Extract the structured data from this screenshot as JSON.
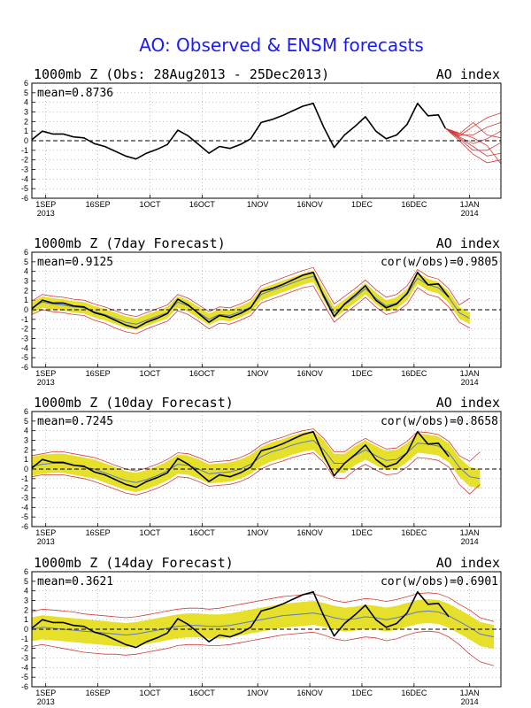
{
  "figure": {
    "title": "AO: Observed & ENSM forecasts"
  },
  "colors": {
    "obs": "#000000",
    "ens_mean": "#5a78c8",
    "ens_band": "#e6e02a",
    "ens_members": "#d23c3c",
    "title": "#1a1aff",
    "zero_line": "#000000"
  },
  "x_axis": {
    "start_date": "2013-08-28",
    "end_date": "2014-01-10",
    "ticks": [
      {
        "date": "2013-09-01",
        "label": "1SEP",
        "sublabel": "2013"
      },
      {
        "date": "2013-09-16",
        "label": "16SEP"
      },
      {
        "date": "2013-10-01",
        "label": "1OCT"
      },
      {
        "date": "2013-10-16",
        "label": "16OCT"
      },
      {
        "date": "2013-11-01",
        "label": "1NOV"
      },
      {
        "date": "2013-11-16",
        "label": "16NOV"
      },
      {
        "date": "2013-12-01",
        "label": "1DEC"
      },
      {
        "date": "2013-12-16",
        "label": "16DEC"
      },
      {
        "date": "2014-01-01",
        "label": "1JAN",
        "sublabel": "2014"
      }
    ]
  },
  "y_axis": {
    "ylim": [
      -6,
      6
    ],
    "ticks": [
      "6",
      "5",
      "4",
      "3",
      "2",
      "1",
      "0",
      "-1",
      "-2",
      "-3",
      "-4",
      "-5",
      "-6"
    ],
    "grid": "dotted"
  },
  "chart_data": [
    {
      "type": "line",
      "title": "1000mb Z (Obs: 28Aug2013 - 25Dec2013)",
      "right_label": "AO index",
      "stat_text": "mean=0.8736",
      "cor_text": "",
      "x": [
        "2013-08-28",
        "2013-08-31",
        "2013-09-03",
        "2013-09-06",
        "2013-09-09",
        "2013-09-12",
        "2013-09-15",
        "2013-09-18",
        "2013-09-21",
        "2013-09-24",
        "2013-09-27",
        "2013-09-30",
        "2013-10-03",
        "2013-10-06",
        "2013-10-09",
        "2013-10-12",
        "2013-10-15",
        "2013-10-18",
        "2013-10-21",
        "2013-10-24",
        "2013-10-27",
        "2013-10-30",
        "2013-11-02",
        "2013-11-05",
        "2013-11-08",
        "2013-11-11",
        "2013-11-14",
        "2013-11-17",
        "2013-11-20",
        "2013-11-23",
        "2013-11-26",
        "2013-11-29",
        "2013-12-02",
        "2013-12-05",
        "2013-12-08",
        "2013-12-11",
        "2013-12-14",
        "2013-12-17",
        "2013-12-20",
        "2013-12-23",
        "2013-12-25"
      ],
      "obs": [
        0.1,
        1.0,
        0.7,
        0.7,
        0.4,
        0.3,
        -0.3,
        -0.6,
        -1.1,
        -1.6,
        -1.9,
        -1.3,
        -0.9,
        -0.4,
        1.1,
        0.5,
        -0.4,
        -1.3,
        -0.6,
        -0.8,
        -0.4,
        0.2,
        1.9,
        2.2,
        2.6,
        3.1,
        3.6,
        3.9,
        1.4,
        -0.7,
        0.6,
        1.5,
        2.5,
        1.0,
        0.2,
        0.6,
        1.7,
        3.9,
        2.6,
        2.7,
        1.3
      ],
      "members": [
        {
          "x": [
            "2013-12-25",
            "2013-12-29",
            "2014-01-02",
            "2014-01-06",
            "2014-01-10"
          ],
          "y": [
            1.3,
            0.5,
            1.5,
            2.4,
            2.9
          ]
        },
        {
          "x": [
            "2013-12-25",
            "2013-12-29",
            "2014-01-02",
            "2014-01-06",
            "2014-01-10"
          ],
          "y": [
            1.3,
            0.6,
            0.6,
            1.4,
            1.9
          ]
        },
        {
          "x": [
            "2013-12-25",
            "2013-12-29",
            "2014-01-02",
            "2014-01-06",
            "2014-01-10"
          ],
          "y": [
            1.3,
            0.4,
            -0.3,
            0.2,
            1.0
          ]
        },
        {
          "x": [
            "2013-12-25",
            "2013-12-29",
            "2014-01-02",
            "2014-01-06",
            "2014-01-10"
          ],
          "y": [
            1.3,
            0.2,
            -1.0,
            -1.0,
            -0.2
          ]
        },
        {
          "x": [
            "2013-12-25",
            "2013-12-29",
            "2014-01-02",
            "2014-01-06",
            "2014-01-10"
          ],
          "y": [
            1.3,
            0.3,
            -0.6,
            -1.6,
            -1.3
          ]
        },
        {
          "x": [
            "2013-12-25",
            "2013-12-29",
            "2014-01-02",
            "2014-01-06",
            "2014-01-10"
          ],
          "y": [
            1.3,
            0.8,
            0.3,
            -0.5,
            -2.4
          ]
        },
        {
          "x": [
            "2013-12-25",
            "2013-12-29",
            "2014-01-02",
            "2014-01-06",
            "2014-01-10"
          ],
          "y": [
            1.3,
            0.0,
            -1.4,
            -2.3,
            -2.0
          ]
        },
        {
          "x": [
            "2013-12-25",
            "2013-12-29",
            "2014-01-02",
            "2014-01-06",
            "2014-01-10"
          ],
          "y": [
            1.3,
            0.7,
            1.9,
            0.6,
            0.3
          ]
        }
      ]
    },
    {
      "type": "line",
      "title": "1000mb Z (7day Forecast)",
      "right_label": "AO index",
      "stat_text": "mean=0.9125",
      "cor_text": "cor(w/obs)=0.9805",
      "x": [
        "2013-08-28",
        "2013-08-31",
        "2013-09-03",
        "2013-09-06",
        "2013-09-09",
        "2013-09-12",
        "2013-09-15",
        "2013-09-18",
        "2013-09-21",
        "2013-09-24",
        "2013-09-27",
        "2013-09-30",
        "2013-10-03",
        "2013-10-06",
        "2013-10-09",
        "2013-10-12",
        "2013-10-15",
        "2013-10-18",
        "2013-10-21",
        "2013-10-24",
        "2013-10-27",
        "2013-10-30",
        "2013-11-02",
        "2013-11-05",
        "2013-11-08",
        "2013-11-11",
        "2013-11-14",
        "2013-11-17",
        "2013-11-20",
        "2013-11-23",
        "2013-11-26",
        "2013-11-29",
        "2013-12-02",
        "2013-12-05",
        "2013-12-08",
        "2013-12-11",
        "2013-12-14",
        "2013-12-17",
        "2013-12-20",
        "2013-12-23",
        "2013-12-26",
        "2013-12-29",
        "2014-01-01"
      ],
      "obs": [
        0.1,
        1.0,
        0.7,
        0.7,
        0.4,
        0.3,
        -0.3,
        -0.6,
        -1.1,
        -1.6,
        -1.9,
        -1.3,
        -0.9,
        -0.4,
        1.1,
        0.5,
        -0.4,
        -1.3,
        -0.6,
        -0.8,
        -0.4,
        0.2,
        1.9,
        2.2,
        2.6,
        3.1,
        3.6,
        3.9,
        1.4,
        -0.7,
        0.6,
        1.5,
        2.5,
        1.0,
        0.2,
        0.6,
        1.7,
        3.9,
        2.6,
        2.7,
        1.3
      ],
      "mean": [
        0.2,
        0.8,
        0.6,
        0.5,
        0.3,
        0.2,
        -0.2,
        -0.5,
        -0.9,
        -1.3,
        -1.5,
        -1.1,
        -0.7,
        -0.3,
        0.8,
        0.4,
        -0.3,
        -1.0,
        -0.5,
        -0.6,
        -0.2,
        0.3,
        1.6,
        2.0,
        2.4,
        2.8,
        3.2,
        3.5,
        1.6,
        -0.3,
        0.5,
        1.3,
        2.2,
        1.2,
        0.4,
        0.7,
        1.6,
        3.3,
        2.6,
        2.3,
        1.3,
        -0.3,
        -0.9
      ],
      "band_halfwidth": 0.6,
      "members_lower": [
        -0.5,
        0.0,
        -0.2,
        -0.3,
        -0.5,
        -0.6,
        -1.1,
        -1.4,
        -1.9,
        -2.3,
        -2.5,
        -2.0,
        -1.6,
        -1.2,
        -0.1,
        -0.5,
        -1.2,
        -2.0,
        -1.4,
        -1.5,
        -1.1,
        -0.6,
        0.7,
        1.1,
        1.5,
        1.9,
        2.3,
        2.5,
        0.6,
        -1.3,
        -0.4,
        0.4,
        1.3,
        0.3,
        -0.5,
        -0.2,
        0.6,
        2.3,
        1.6,
        1.3,
        0.3,
        -1.3,
        -1.9
      ],
      "members_upper": [
        0.9,
        1.6,
        1.4,
        1.3,
        1.1,
        1.0,
        0.6,
        0.3,
        -0.1,
        -0.5,
        -0.7,
        -0.3,
        0.1,
        0.5,
        1.6,
        1.2,
        0.5,
        -0.2,
        0.3,
        0.2,
        0.6,
        1.1,
        2.5,
        2.9,
        3.3,
        3.7,
        4.1,
        4.4,
        2.5,
        0.6,
        1.4,
        2.2,
        3.1,
        2.1,
        1.3,
        1.6,
        2.5,
        4.2,
        3.5,
        3.2,
        2.2,
        0.5,
        1.2
      ]
    },
    {
      "type": "line",
      "title": "1000mb Z (10day Forecast)",
      "right_label": "AO index",
      "stat_text": "mean=0.7245",
      "cor_text": "cor(w/obs)=0.8658",
      "x": [
        "2013-08-28",
        "2013-08-31",
        "2013-09-03",
        "2013-09-06",
        "2013-09-09",
        "2013-09-12",
        "2013-09-15",
        "2013-09-18",
        "2013-09-21",
        "2013-09-24",
        "2013-09-27",
        "2013-09-30",
        "2013-10-03",
        "2013-10-06",
        "2013-10-09",
        "2013-10-12",
        "2013-10-15",
        "2013-10-18",
        "2013-10-21",
        "2013-10-24",
        "2013-10-27",
        "2013-10-30",
        "2013-11-02",
        "2013-11-05",
        "2013-11-08",
        "2013-11-11",
        "2013-11-14",
        "2013-11-17",
        "2013-11-20",
        "2013-11-23",
        "2013-11-26",
        "2013-11-29",
        "2013-12-02",
        "2013-12-05",
        "2013-12-08",
        "2013-12-11",
        "2013-12-14",
        "2013-12-17",
        "2013-12-20",
        "2013-12-23",
        "2013-12-26",
        "2013-12-29",
        "2014-01-01",
        "2014-01-04"
      ],
      "obs": [
        0.1,
        1.0,
        0.7,
        0.7,
        0.4,
        0.3,
        -0.3,
        -0.6,
        -1.1,
        -1.6,
        -1.9,
        -1.3,
        -0.9,
        -0.4,
        1.1,
        0.5,
        -0.4,
        -1.3,
        -0.6,
        -0.8,
        -0.4,
        0.2,
        1.9,
        2.2,
        2.6,
        3.1,
        3.6,
        3.9,
        1.4,
        -0.7,
        0.6,
        1.5,
        2.5,
        1.0,
        0.2,
        0.6,
        1.7,
        3.9,
        2.6,
        2.7,
        1.3
      ],
      "mean": [
        0.3,
        0.5,
        0.6,
        0.6,
        0.4,
        0.2,
        0.0,
        -0.4,
        -0.8,
        -1.2,
        -1.4,
        -1.1,
        -0.7,
        -0.2,
        0.5,
        0.4,
        0.0,
        -0.5,
        -0.4,
        -0.3,
        0.0,
        0.5,
        1.3,
        1.8,
        2.1,
        2.5,
        2.8,
        3.0,
        2.0,
        0.6,
        0.6,
        1.4,
        2.0,
        1.4,
        0.9,
        1.0,
        1.7,
        2.7,
        2.6,
        2.4,
        1.7,
        0.2,
        -0.8,
        -1.0
      ],
      "band_halfwidth": 1.0,
      "members_lower": [
        -0.8,
        -0.6,
        -0.6,
        -0.6,
        -0.8,
        -1.0,
        -1.3,
        -1.7,
        -2.1,
        -2.5,
        -2.7,
        -2.4,
        -2.0,
        -1.5,
        -0.8,
        -0.9,
        -1.3,
        -1.8,
        -1.7,
        -1.6,
        -1.3,
        -0.8,
        0.0,
        0.5,
        0.8,
        1.2,
        1.5,
        1.7,
        0.7,
        -0.9,
        -1.0,
        -0.1,
        0.5,
        -0.1,
        -0.6,
        -0.5,
        0.2,
        1.2,
        1.1,
        0.9,
        0.2,
        -1.6,
        -2.6,
        -1.6
      ],
      "members_upper": [
        1.4,
        1.6,
        1.8,
        1.8,
        1.6,
        1.4,
        1.2,
        0.8,
        0.4,
        0.0,
        -0.2,
        0.1,
        0.5,
        1.0,
        1.7,
        1.6,
        1.2,
        0.7,
        0.8,
        0.9,
        1.2,
        1.7,
        2.5,
        3.0,
        3.3,
        3.7,
        4.0,
        4.2,
        3.2,
        1.8,
        1.8,
        2.6,
        3.2,
        2.6,
        2.1,
        2.2,
        2.9,
        3.9,
        3.8,
        3.6,
        2.9,
        1.4,
        0.8,
        1.8
      ]
    },
    {
      "type": "line",
      "title": "1000mb Z (14day Forecast)",
      "right_label": "AO index",
      "stat_text": "mean=0.3621",
      "cor_text": "cor(w/obs)=0.6901",
      "x": [
        "2013-08-28",
        "2013-08-31",
        "2013-09-03",
        "2013-09-06",
        "2013-09-09",
        "2013-09-12",
        "2013-09-15",
        "2013-09-18",
        "2013-09-21",
        "2013-09-24",
        "2013-09-27",
        "2013-09-30",
        "2013-10-03",
        "2013-10-06",
        "2013-10-09",
        "2013-10-12",
        "2013-10-15",
        "2013-10-18",
        "2013-10-21",
        "2013-10-24",
        "2013-10-27",
        "2013-10-30",
        "2013-11-02",
        "2013-11-05",
        "2013-11-08",
        "2013-11-11",
        "2013-11-14",
        "2013-11-17",
        "2013-11-20",
        "2013-11-23",
        "2013-11-26",
        "2013-11-29",
        "2013-12-02",
        "2013-12-05",
        "2013-12-08",
        "2013-12-11",
        "2013-12-14",
        "2013-12-17",
        "2013-12-20",
        "2013-12-23",
        "2013-12-26",
        "2013-12-29",
        "2014-01-01",
        "2014-01-04",
        "2014-01-08"
      ],
      "obs": [
        0.1,
        1.0,
        0.7,
        0.7,
        0.4,
        0.3,
        -0.3,
        -0.6,
        -1.1,
        -1.6,
        -1.9,
        -1.3,
        -0.9,
        -0.4,
        1.1,
        0.5,
        -0.4,
        -1.3,
        -0.6,
        -0.8,
        -0.4,
        0.2,
        1.9,
        2.2,
        2.6,
        3.1,
        3.6,
        3.9,
        1.4,
        -0.7,
        0.6,
        1.5,
        2.5,
        1.0,
        0.2,
        0.6,
        1.7,
        3.9,
        2.6,
        2.7,
        1.3
      ],
      "mean": [
        0.0,
        0.2,
        0.1,
        0.0,
        -0.1,
        -0.2,
        -0.3,
        -0.4,
        -0.5,
        -0.6,
        -0.5,
        -0.3,
        -0.1,
        0.1,
        0.3,
        0.4,
        0.4,
        0.3,
        0.3,
        0.4,
        0.6,
        0.8,
        1.0,
        1.2,
        1.4,
        1.5,
        1.6,
        1.7,
        1.5,
        1.2,
        1.0,
        1.1,
        1.3,
        1.2,
        1.0,
        1.2,
        1.5,
        1.8,
        1.9,
        1.8,
        1.4,
        0.8,
        0.2,
        -0.5,
        -0.8
      ],
      "band_halfwidth": 1.25,
      "members_lower": [
        -1.8,
        -1.6,
        -1.8,
        -2.0,
        -2.2,
        -2.4,
        -2.5,
        -2.6,
        -2.6,
        -2.7,
        -2.6,
        -2.4,
        -2.2,
        -2.0,
        -1.7,
        -1.6,
        -1.6,
        -1.7,
        -1.7,
        -1.6,
        -1.4,
        -1.2,
        -1.0,
        -0.8,
        -0.6,
        -0.5,
        -0.4,
        -0.3,
        -0.6,
        -1.0,
        -1.2,
        -1.0,
        -0.8,
        -0.9,
        -1.2,
        -1.0,
        -0.6,
        -0.3,
        -0.2,
        -0.3,
        -0.8,
        -1.6,
        -2.6,
        -3.4,
        -3.8
      ],
      "members_upper": [
        1.8,
        2.1,
        2.0,
        1.9,
        1.8,
        1.6,
        1.5,
        1.4,
        1.3,
        1.2,
        1.3,
        1.5,
        1.7,
        1.9,
        2.1,
        2.2,
        2.2,
        2.1,
        2.2,
        2.4,
        2.6,
        2.8,
        3.0,
        3.2,
        3.4,
        3.5,
        3.6,
        3.7,
        3.4,
        3.0,
        2.8,
        3.0,
        3.2,
        3.1,
        2.9,
        3.1,
        3.4,
        3.7,
        3.8,
        3.7,
        3.3,
        2.6,
        2.0,
        1.2,
        0.8
      ]
    }
  ]
}
